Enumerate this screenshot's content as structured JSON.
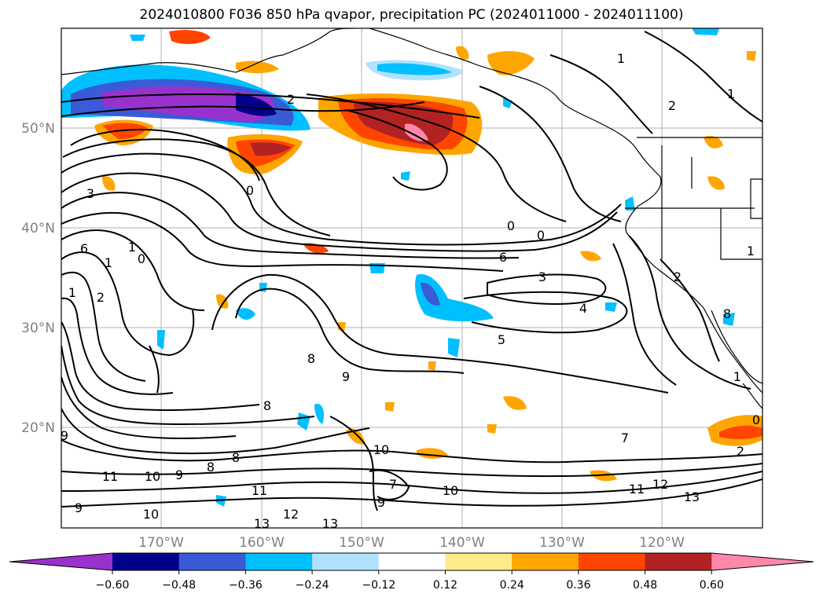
{
  "title": "2024010800 F036 850 hPa qvapor, precipitation PC (2024011000 - 2024011100)",
  "latitudes": [
    "50°N",
    "40°N",
    "30°N",
    "20°N"
  ],
  "longitudes": [
    "170°W",
    "160°W",
    "150°W",
    "140°W",
    "130°W",
    "120°W"
  ],
  "colorbar": {
    "ticks": [
      "−0.60",
      "−0.48",
      "−0.36",
      "−0.24",
      "−0.12",
      "0.12",
      "0.24",
      "0.36",
      "0.48",
      "0.60"
    ],
    "colors": [
      "#9932cc",
      "#00008b",
      "#3a5bd6",
      "#00bfff",
      "#b0e2ff",
      "#ffffff",
      "#ffea8a",
      "#ffa500",
      "#ff4500",
      "#b22222",
      "#ff88aa"
    ]
  },
  "contour_labels": [
    "2",
    "3",
    "0",
    "1",
    "6",
    "0",
    "1",
    "2",
    "1",
    "0",
    "0",
    "1",
    "1",
    "2",
    "3",
    "4",
    "5",
    "6",
    "8",
    "9",
    "9",
    "8",
    "8",
    "10",
    "10",
    "11",
    "9",
    "8",
    "7",
    "9",
    "10",
    "11",
    "12",
    "13",
    "13",
    "12",
    "13",
    "11",
    "10",
    "9",
    "7",
    "2",
    "1",
    "0",
    "2",
    "1",
    "8"
  ]
}
